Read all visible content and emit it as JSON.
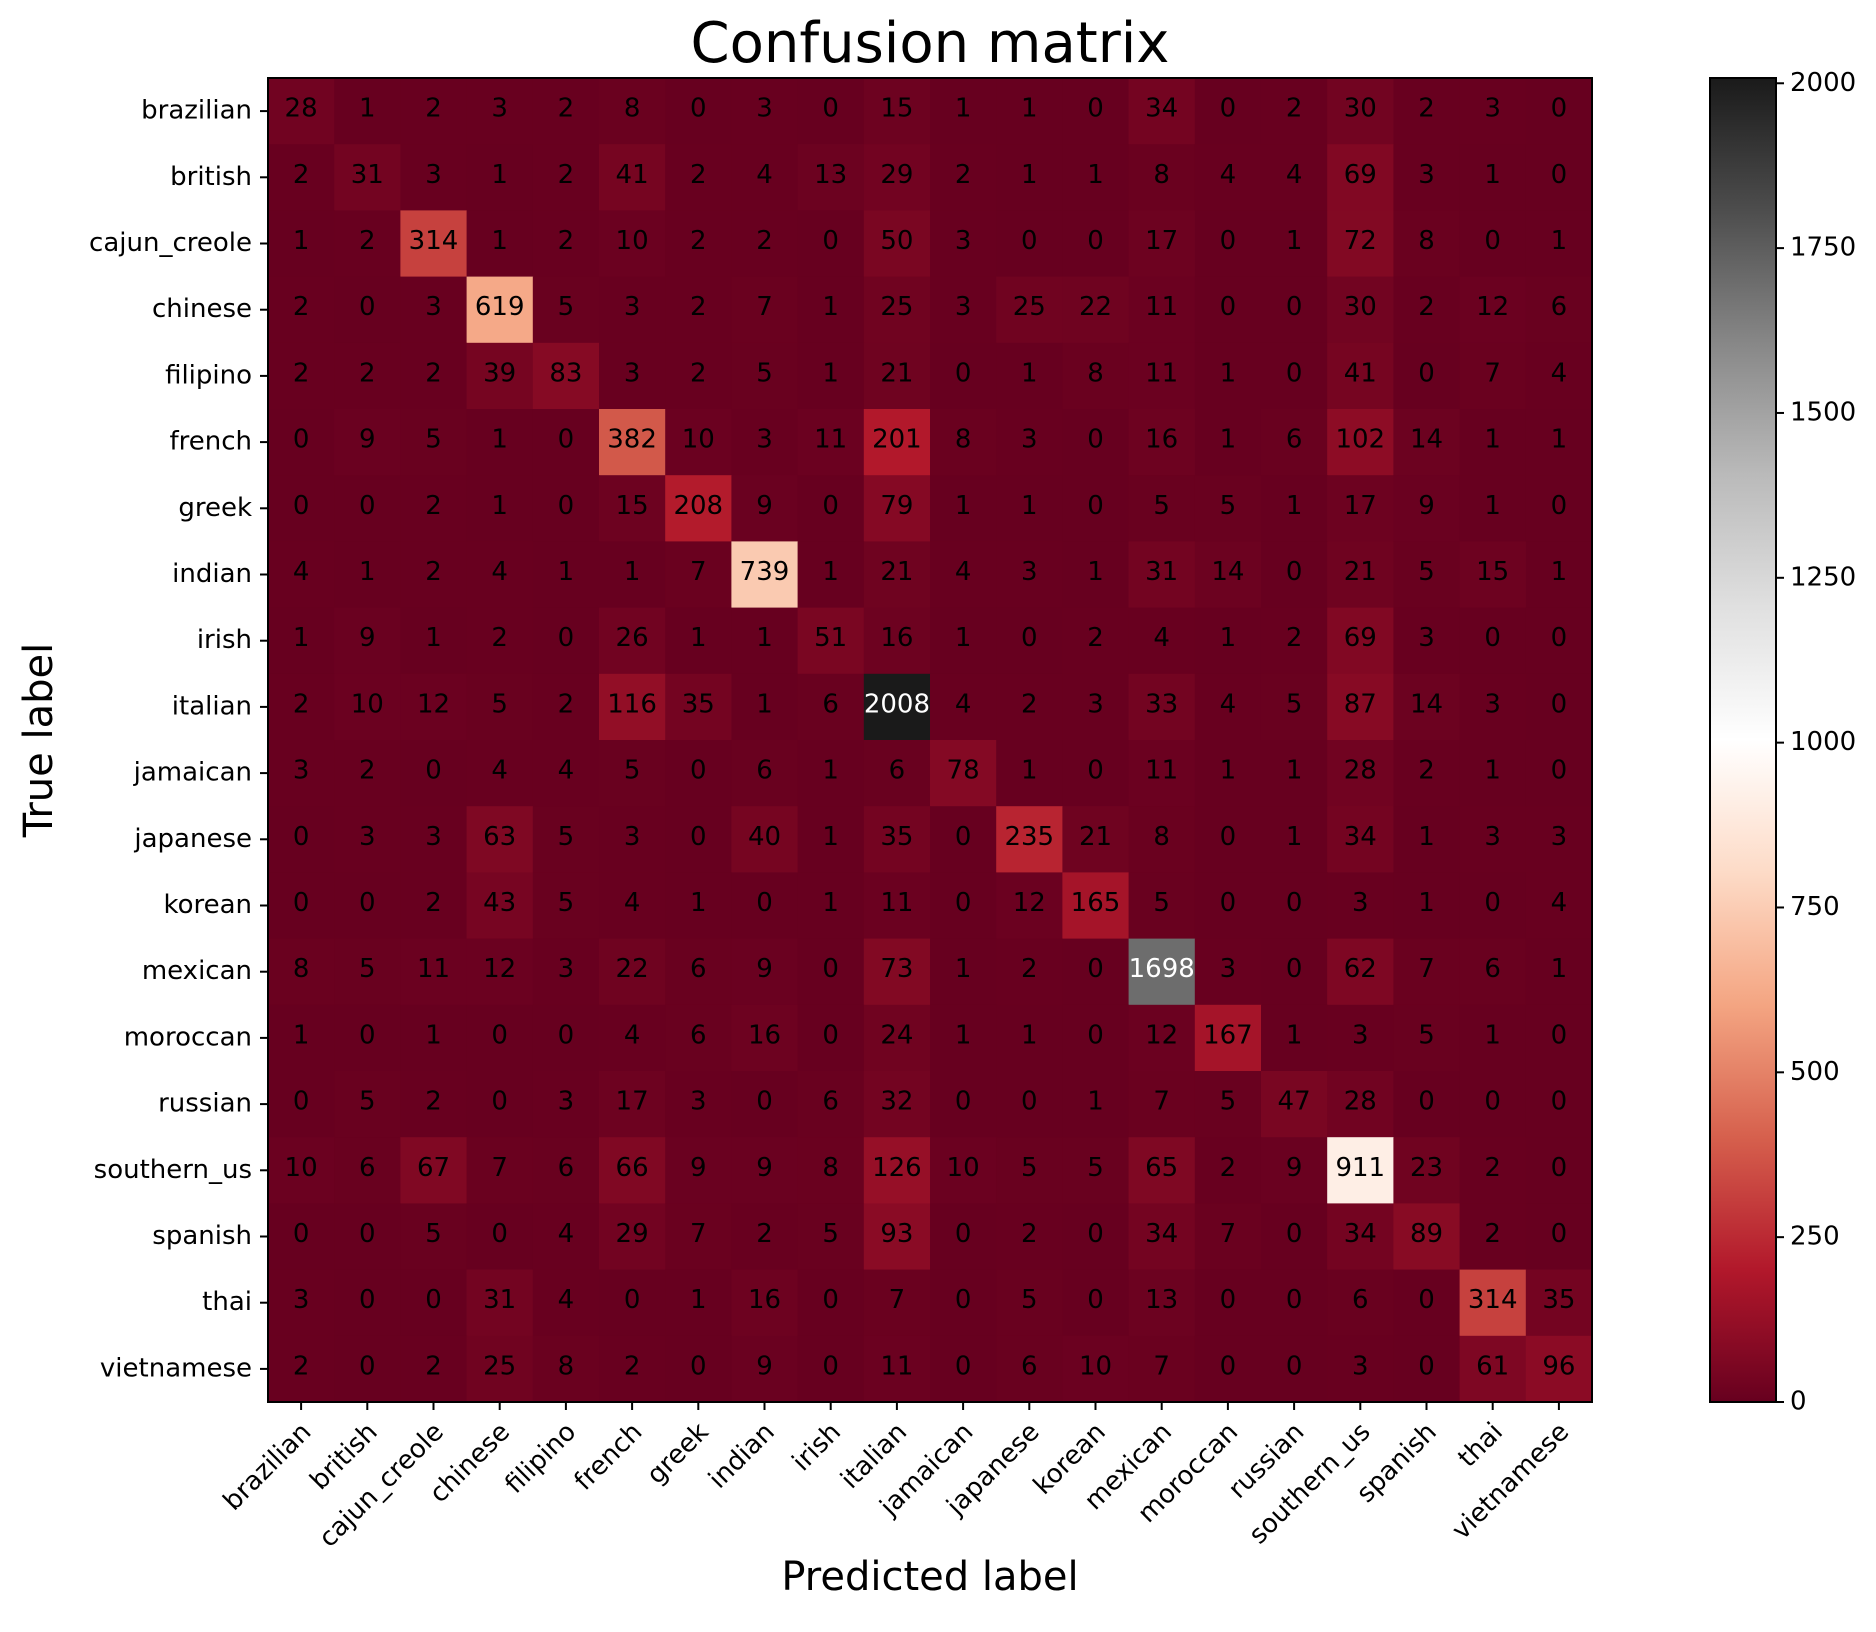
{
  "chart_data": {
    "type": "heatmap",
    "title": "Confusion matrix",
    "xlabel": "Predicted label",
    "ylabel": "True label",
    "colormap": "RdGy",
    "color_range": [
      0,
      2008
    ],
    "colorbar_ticks": [
      0,
      250,
      500,
      750,
      1000,
      1250,
      1500,
      1750,
      2000
    ],
    "labels": [
      "brazilian",
      "british",
      "cajun_creole",
      "chinese",
      "filipino",
      "french",
      "greek",
      "indian",
      "irish",
      "italian",
      "jamaican",
      "japanese",
      "korean",
      "mexican",
      "moroccan",
      "russian",
      "southern_us",
      "spanish",
      "thai",
      "vietnamese"
    ],
    "matrix": [
      [
        28,
        1,
        2,
        3,
        2,
        8,
        0,
        3,
        0,
        15,
        1,
        1,
        0,
        34,
        0,
        2,
        30,
        2,
        3,
        0
      ],
      [
        2,
        31,
        3,
        1,
        2,
        41,
        2,
        4,
        13,
        29,
        2,
        1,
        1,
        8,
        4,
        4,
        69,
        3,
        1,
        0
      ],
      [
        1,
        2,
        314,
        1,
        2,
        10,
        2,
        2,
        0,
        50,
        3,
        0,
        0,
        17,
        0,
        1,
        72,
        8,
        0,
        1
      ],
      [
        2,
        0,
        3,
        619,
        5,
        3,
        2,
        7,
        1,
        25,
        3,
        25,
        22,
        11,
        0,
        0,
        30,
        2,
        12,
        6
      ],
      [
        2,
        2,
        2,
        39,
        83,
        3,
        2,
        5,
        1,
        21,
        0,
        1,
        8,
        11,
        1,
        0,
        41,
        0,
        7,
        4
      ],
      [
        0,
        9,
        5,
        1,
        0,
        382,
        10,
        3,
        11,
        201,
        8,
        3,
        0,
        16,
        1,
        6,
        102,
        14,
        1,
        1
      ],
      [
        0,
        0,
        2,
        1,
        0,
        15,
        208,
        9,
        0,
        79,
        1,
        1,
        0,
        5,
        5,
        1,
        17,
        9,
        1,
        0
      ],
      [
        4,
        1,
        2,
        4,
        1,
        1,
        7,
        739,
        1,
        21,
        4,
        3,
        1,
        31,
        14,
        0,
        21,
        5,
        15,
        1
      ],
      [
        1,
        9,
        1,
        2,
        0,
        26,
        1,
        1,
        51,
        16,
        1,
        0,
        2,
        4,
        1,
        2,
        69,
        3,
        0,
        0
      ],
      [
        2,
        10,
        12,
        5,
        2,
        116,
        35,
        1,
        6,
        2008,
        4,
        2,
        3,
        33,
        4,
        5,
        87,
        14,
        3,
        0
      ],
      [
        3,
        2,
        0,
        4,
        4,
        5,
        0,
        6,
        1,
        6,
        78,
        1,
        0,
        11,
        1,
        1,
        28,
        2,
        1,
        0
      ],
      [
        0,
        3,
        3,
        63,
        5,
        3,
        0,
        40,
        1,
        35,
        0,
        235,
        21,
        8,
        0,
        1,
        34,
        1,
        3,
        3
      ],
      [
        0,
        0,
        2,
        43,
        5,
        4,
        1,
        0,
        1,
        11,
        0,
        12,
        165,
        5,
        0,
        0,
        3,
        1,
        0,
        4
      ],
      [
        8,
        5,
        11,
        12,
        3,
        22,
        6,
        9,
        0,
        73,
        1,
        2,
        0,
        1698,
        3,
        0,
        62,
        7,
        6,
        1
      ],
      [
        1,
        0,
        1,
        0,
        0,
        4,
        6,
        16,
        0,
        24,
        1,
        1,
        0,
        12,
        167,
        1,
        3,
        5,
        1,
        0
      ],
      [
        0,
        5,
        2,
        0,
        3,
        17,
        3,
        0,
        6,
        32,
        0,
        0,
        1,
        7,
        5,
        47,
        28,
        0,
        0,
        0
      ],
      [
        10,
        6,
        67,
        7,
        6,
        66,
        9,
        9,
        8,
        126,
        10,
        5,
        5,
        65,
        2,
        9,
        911,
        23,
        2,
        0
      ],
      [
        0,
        0,
        5,
        0,
        4,
        29,
        7,
        2,
        5,
        93,
        0,
        2,
        0,
        34,
        7,
        0,
        34,
        89,
        2,
        0
      ],
      [
        3,
        0,
        0,
        31,
        4,
        0,
        1,
        16,
        0,
        7,
        0,
        5,
        0,
        13,
        0,
        0,
        6,
        0,
        314,
        35
      ],
      [
        2,
        0,
        2,
        25,
        8,
        2,
        0,
        9,
        0,
        11,
        0,
        6,
        10,
        7,
        0,
        0,
        3,
        0,
        61,
        96
      ]
    ]
  }
}
